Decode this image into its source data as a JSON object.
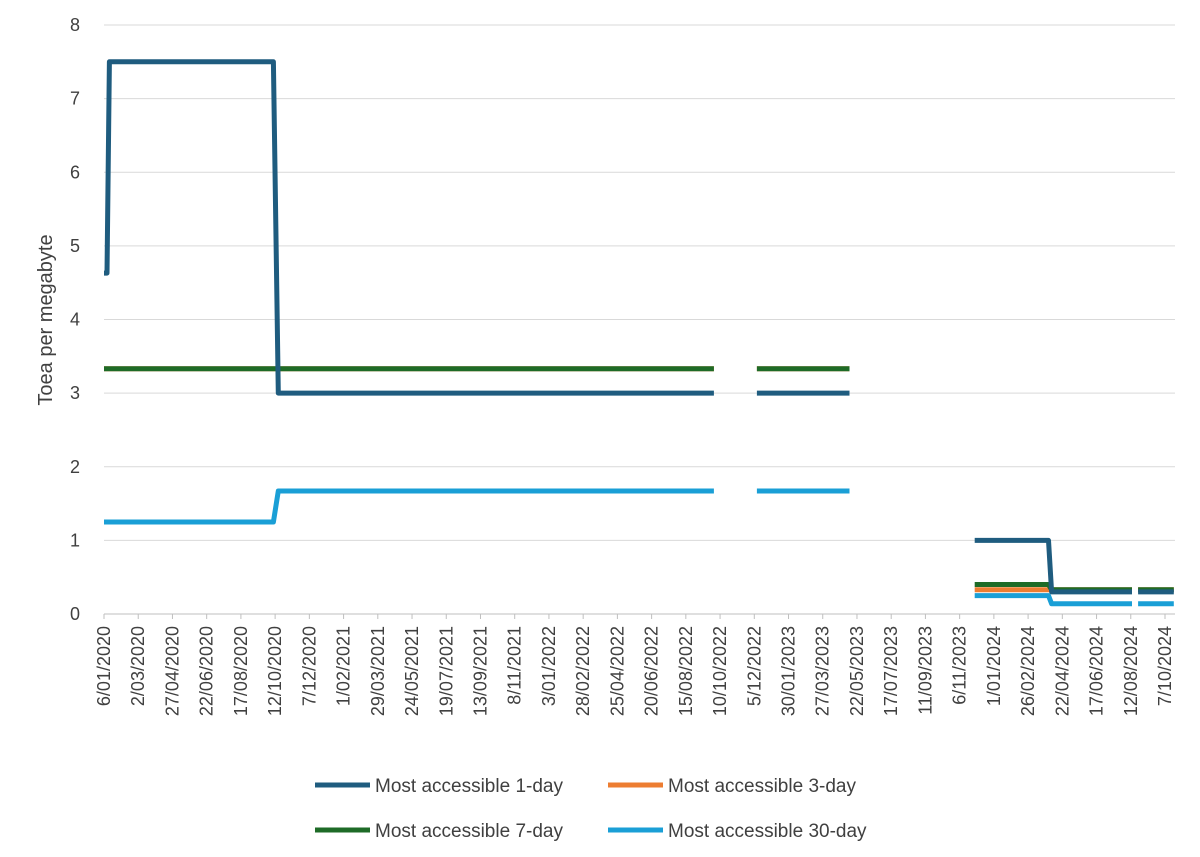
{
  "chart_data": {
    "type": "line",
    "title": "",
    "xlabel": "",
    "ylabel": "Toea per megabyte",
    "ylim": [
      0,
      8
    ],
    "yticks": [
      "0",
      "1",
      "2",
      "3",
      "4",
      "5",
      "6",
      "7",
      "8"
    ],
    "grid": "horizontal",
    "legend_position": "bottom",
    "x_tick_labels": [
      "6/01/2020",
      "2/03/2020",
      "27/04/2020",
      "22/06/2020",
      "17/08/2020",
      "12/10/2020",
      "7/12/2020",
      "1/02/2021",
      "29/03/2021",
      "24/05/2021",
      "19/07/2021",
      "13/09/2021",
      "8/11/2021",
      "3/01/2022",
      "28/02/2022",
      "25/04/2022",
      "20/06/2022",
      "15/08/2022",
      "10/10/2022",
      "5/12/2022",
      "30/01/2023",
      "27/03/2023",
      "22/05/2023",
      "17/07/2023",
      "11/09/2023",
      "6/11/2023",
      "1/01/2024",
      "26/02/2024",
      "22/04/2024",
      "17/06/2024",
      "12/08/2024",
      "7/10/2024"
    ],
    "x_range": [
      "2020-01-06",
      "2024-11-10"
    ],
    "series": [
      {
        "name": "Most accessible 1-day",
        "color": "#1f5c7f",
        "segments": [
          [
            [
              "2020-01-06",
              4.63
            ],
            [
              "2020-01-11",
              4.63
            ],
            [
              "2020-01-15",
              7.5
            ],
            [
              "2020-10-12",
              7.5
            ],
            [
              "2020-10-20",
              3.0
            ],
            [
              "2022-10-10",
              3.0
            ]
          ],
          [
            [
              "2022-12-20",
              3.0
            ],
            [
              "2023-05-22",
              3.0
            ]
          ],
          [
            [
              "2023-12-15",
              1.0
            ],
            [
              "2024-04-15",
              1.0
            ],
            [
              "2024-04-20",
              0.3
            ],
            [
              "2024-08-31",
              0.3
            ]
          ],
          [
            [
              "2024-09-10",
              0.3
            ],
            [
              "2024-11-08",
              0.3
            ]
          ]
        ]
      },
      {
        "name": "Most accessible 3-day",
        "color": "#ed7d31",
        "segments": [
          [
            [
              "2020-01-06",
              3.33
            ],
            [
              "2022-10-10",
              3.33
            ]
          ],
          [
            [
              "2022-12-20",
              3.33
            ],
            [
              "2023-05-22",
              3.33
            ]
          ],
          [
            [
              "2023-12-15",
              0.33
            ],
            [
              "2024-04-15",
              0.33
            ],
            [
              "2024-04-20",
              0.33
            ],
            [
              "2024-08-31",
              0.33
            ]
          ],
          [
            [
              "2024-09-10",
              0.33
            ],
            [
              "2024-11-08",
              0.33
            ]
          ]
        ]
      },
      {
        "name": "Most accessible 7-day",
        "color": "#1e6b27",
        "segments": [
          [
            [
              "2020-01-06",
              3.33
            ],
            [
              "2022-10-10",
              3.33
            ]
          ],
          [
            [
              "2022-12-20",
              3.33
            ],
            [
              "2023-05-22",
              3.33
            ]
          ],
          [
            [
              "2023-12-15",
              0.4
            ],
            [
              "2024-04-15",
              0.4
            ],
            [
              "2024-04-20",
              0.33
            ],
            [
              "2024-08-31",
              0.33
            ]
          ],
          [
            [
              "2024-09-10",
              0.33
            ],
            [
              "2024-11-08",
              0.33
            ]
          ]
        ]
      },
      {
        "name": "Most accessible 30-day",
        "color": "#1a9fd6",
        "segments": [
          [
            [
              "2020-01-06",
              1.25
            ],
            [
              "2020-10-12",
              1.25
            ],
            [
              "2020-10-20",
              1.67
            ],
            [
              "2022-10-10",
              1.67
            ]
          ],
          [
            [
              "2022-12-20",
              1.67
            ],
            [
              "2023-05-22",
              1.67
            ]
          ],
          [
            [
              "2023-12-15",
              0.25
            ],
            [
              "2024-04-15",
              0.25
            ],
            [
              "2024-04-20",
              0.14
            ],
            [
              "2024-08-31",
              0.14
            ]
          ],
          [
            [
              "2024-09-10",
              0.14
            ],
            [
              "2024-11-08",
              0.14
            ]
          ]
        ]
      }
    ]
  }
}
